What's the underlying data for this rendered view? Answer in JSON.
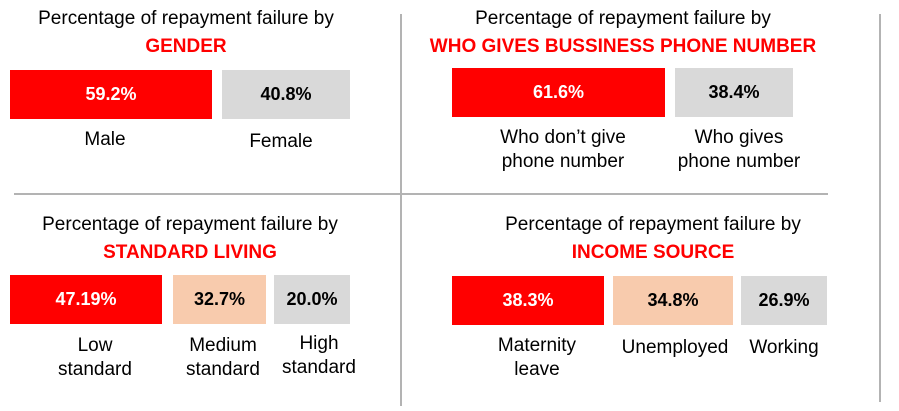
{
  "colors": {
    "red": "#ff0000",
    "gray": "#d9d9d9",
    "peach": "#f8cbad",
    "key_text": "#ff0000"
  },
  "chart_data": [
    {
      "type": "bar",
      "title": "Percentage of repayment failure by",
      "subtitle": "GENDER",
      "categories": [
        "Male",
        "Female"
      ],
      "values": [
        59.2,
        40.8
      ],
      "value_labels": [
        "59.2%",
        "40.8%"
      ],
      "unit": "%"
    },
    {
      "type": "bar",
      "title": "Percentage of repayment failure by",
      "subtitle": "WHO GIVES BUSSINESS PHONE NUMBER",
      "categories": [
        "Who don’t give phone number",
        "Who gives phone number"
      ],
      "category_lines": [
        [
          "Who don’t give",
          "phone number"
        ],
        [
          "Who gives",
          "phone number"
        ]
      ],
      "values": [
        61.6,
        38.4
      ],
      "value_labels": [
        "61.6%",
        "38.4%"
      ],
      "unit": "%"
    },
    {
      "type": "bar",
      "title": "Percentage of repayment failure by",
      "subtitle": "STANDARD LIVING",
      "categories": [
        "Low standard",
        "Medium standard",
        "High standard"
      ],
      "category_lines": [
        [
          "Low",
          "standard"
        ],
        [
          "Medium",
          "standard"
        ],
        [
          "High",
          "standard"
        ]
      ],
      "values": [
        47.19,
        32.7,
        20.0
      ],
      "value_labels": [
        "47.19%",
        "32.7%",
        "20.0%"
      ],
      "unit": "%"
    },
    {
      "type": "bar",
      "title": "Percentage of repayment failure by",
      "subtitle": "INCOME SOURCE",
      "categories": [
        "Maternity leave",
        "Unemployed",
        "Working"
      ],
      "category_lines": [
        [
          "Maternity",
          "leave"
        ],
        [
          "Unemployed"
        ],
        [
          "Working"
        ]
      ],
      "values": [
        38.3,
        34.8,
        26.9
      ],
      "value_labels": [
        "38.3%",
        "34.8%",
        "26.9%"
      ],
      "unit": "%"
    }
  ]
}
